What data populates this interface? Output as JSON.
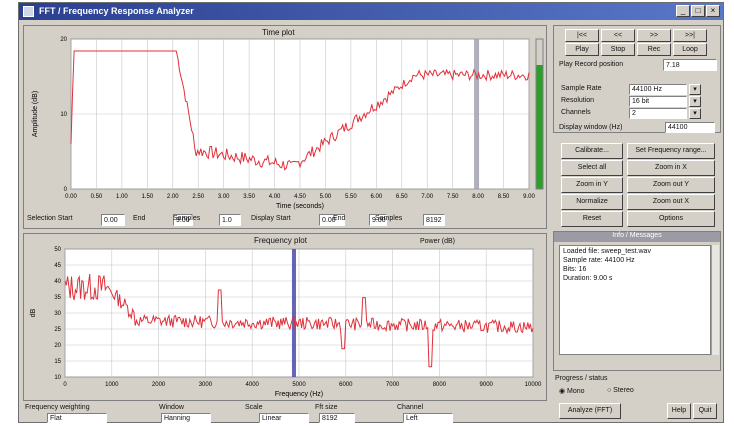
{
  "window": {
    "title": "FFT / Frequency Response Analyzer"
  },
  "top_plot": {
    "title": "Time plot",
    "xlabel": "Time (seconds)",
    "ylabel": "Amplitude (dB)",
    "y_ticks": [
      "20",
      "10",
      "0"
    ],
    "x_ticks": [
      "0.00",
      "0.50",
      "1.00",
      "1.50",
      "2.00",
      "2.50",
      "3.00",
      "3.50",
      "4.00",
      "4.50",
      "5.00",
      "5.50",
      "6.00",
      "6.50",
      "7.00",
      "7.50",
      "8.00",
      "8.50",
      "9.00"
    ],
    "colors": {
      "trace": "#e0303a",
      "cursor": "#9e9eae",
      "grid": "#c8c8c8",
      "level_bar": "#2aa02a"
    },
    "status_fields": [
      {
        "label": "Selection Start",
        "value": "0.00"
      },
      {
        "label": "End",
        "value": "9.00"
      },
      {
        "label": "Samples",
        "value": "1.0"
      },
      {
        "label": "Display Start",
        "value": "0.00"
      },
      {
        "label": "End",
        "value": "9.00"
      },
      {
        "label": "Samples",
        "value": "8192"
      }
    ]
  },
  "bottom_plot": {
    "title": "Frequency plot",
    "legend": "Power (dB)",
    "xlabel": "Frequency (Hz)",
    "ylabel": "dB",
    "y_ticks": [
      "50",
      "45",
      "40",
      "35",
      "30",
      "25",
      "20",
      "15",
      "10"
    ],
    "x_ticks": [
      "0",
      "1000",
      "2000",
      "3000",
      "4000",
      "5000",
      "6000",
      "7000",
      "8000",
      "9000",
      "10000"
    ],
    "colors": {
      "trace": "#e0303a",
      "cursor": "#4a4aa8",
      "grid": "#c8c8c8"
    }
  },
  "bottom_bar": [
    {
      "label": "Frequency weighting",
      "value": "Flat"
    },
    {
      "label": "Window",
      "value": "Hanning"
    },
    {
      "label": "Scale",
      "value": "Linear"
    },
    {
      "label": "Fft size",
      "value": "8192"
    },
    {
      "label": "Channel",
      "value": "Left"
    }
  ],
  "transport": [
    "|<<",
    "<<",
    ">>",
    ">>|",
    "Play",
    "Stop",
    "Rec",
    "Loop"
  ],
  "play_label": "Play Record position",
  "play_value": "7.18",
  "settings": [
    {
      "label": "Sample Rate",
      "value": "44100 Hz"
    },
    {
      "label": "Resolution",
      "value": "16 bit"
    },
    {
      "label": "Channels",
      "value": "2"
    }
  ],
  "display_label": "Display window (Hz)",
  "display_value": "44100",
  "action_buttons": [
    [
      "Calibrate...",
      "Set Frequency range..."
    ],
    [
      "Select all",
      "Zoom in X"
    ],
    [
      "Zoom in Y",
      "Zoom out Y"
    ],
    [
      "Normalize",
      "Zoom out X"
    ],
    [
      "Reset",
      "Options"
    ]
  ],
  "info_panel": {
    "title": "Info / Messages",
    "lines": [
      "Loaded file: sweep_test.wav",
      "Sample rate: 44100 Hz",
      "Bits: 16",
      "Duration: 9.00 s"
    ]
  },
  "progress_label": "Progress / status",
  "radio_options": [
    "Mono",
    "Stereo"
  ],
  "footer_buttons": [
    "Analyze (FFT)",
    "Help",
    "Quit"
  ]
}
